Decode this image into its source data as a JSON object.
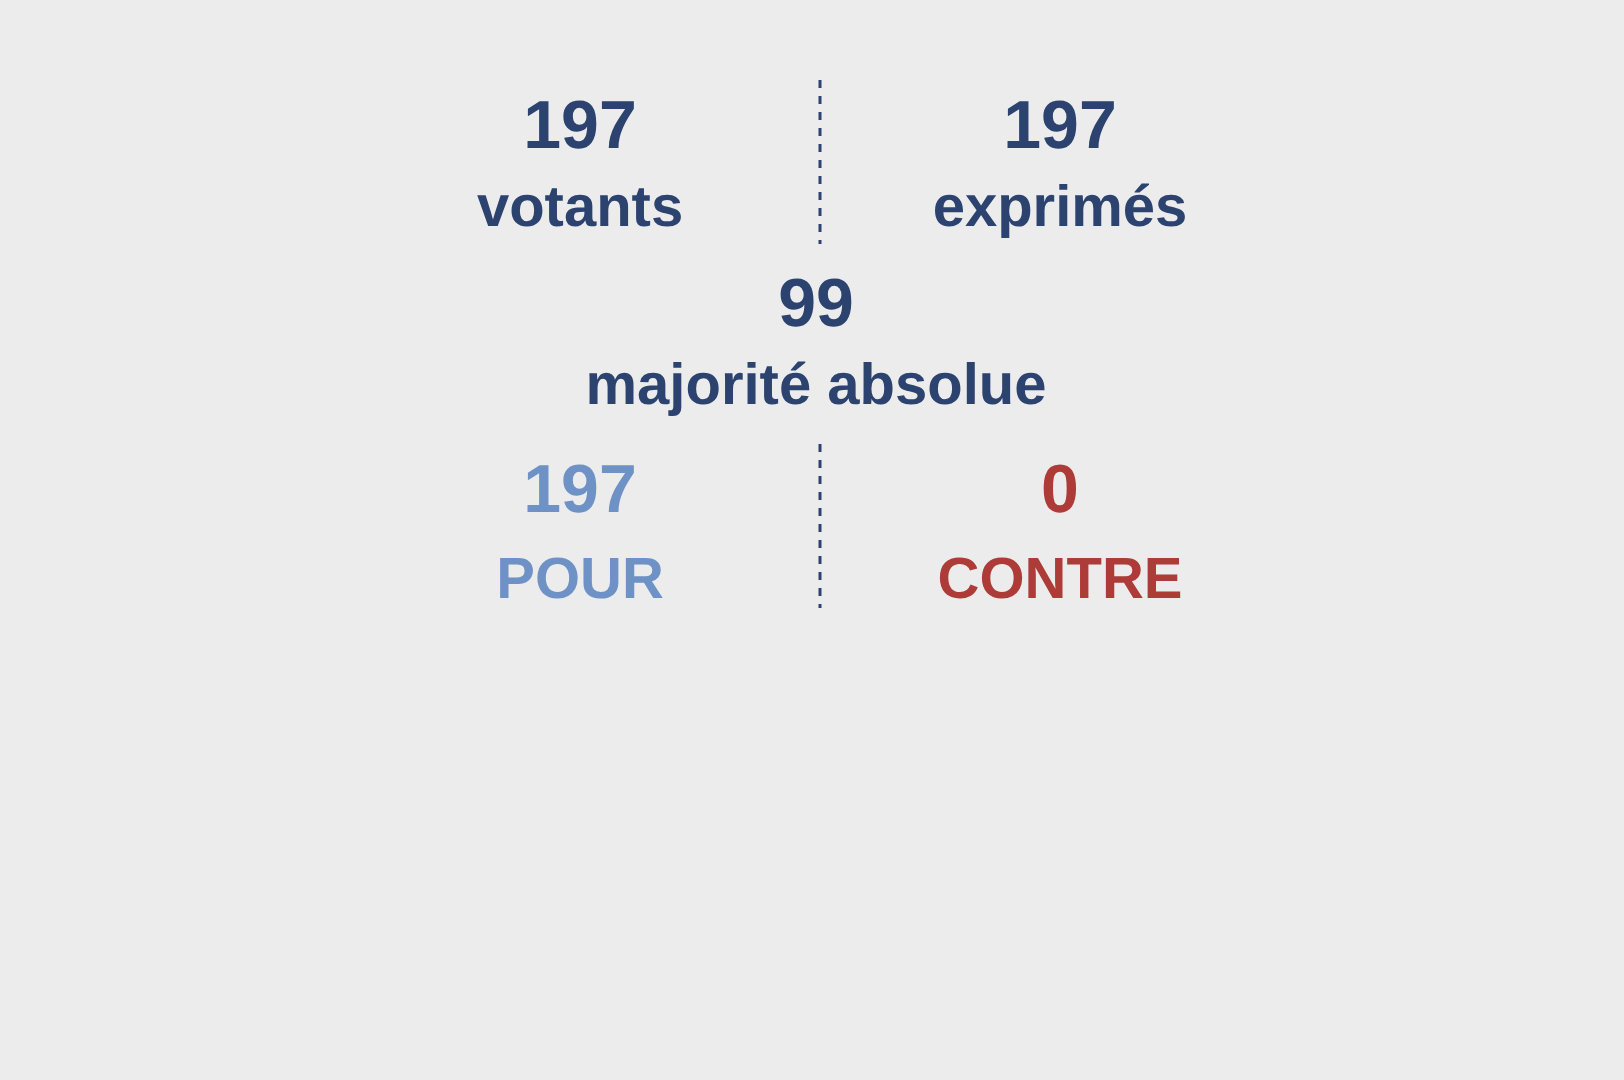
{
  "chart_data": {
    "type": "other",
    "categories": [
      "votants",
      "exprimés",
      "majorité absolue",
      "POUR",
      "CONTRE"
    ],
    "values": [
      197,
      197,
      99,
      197,
      0
    ],
    "colors": [
      "#2c4370",
      "#2c4370",
      "#2c4370",
      "#6f92c6",
      "#ad3b37"
    ],
    "data_labels": true
  }
}
